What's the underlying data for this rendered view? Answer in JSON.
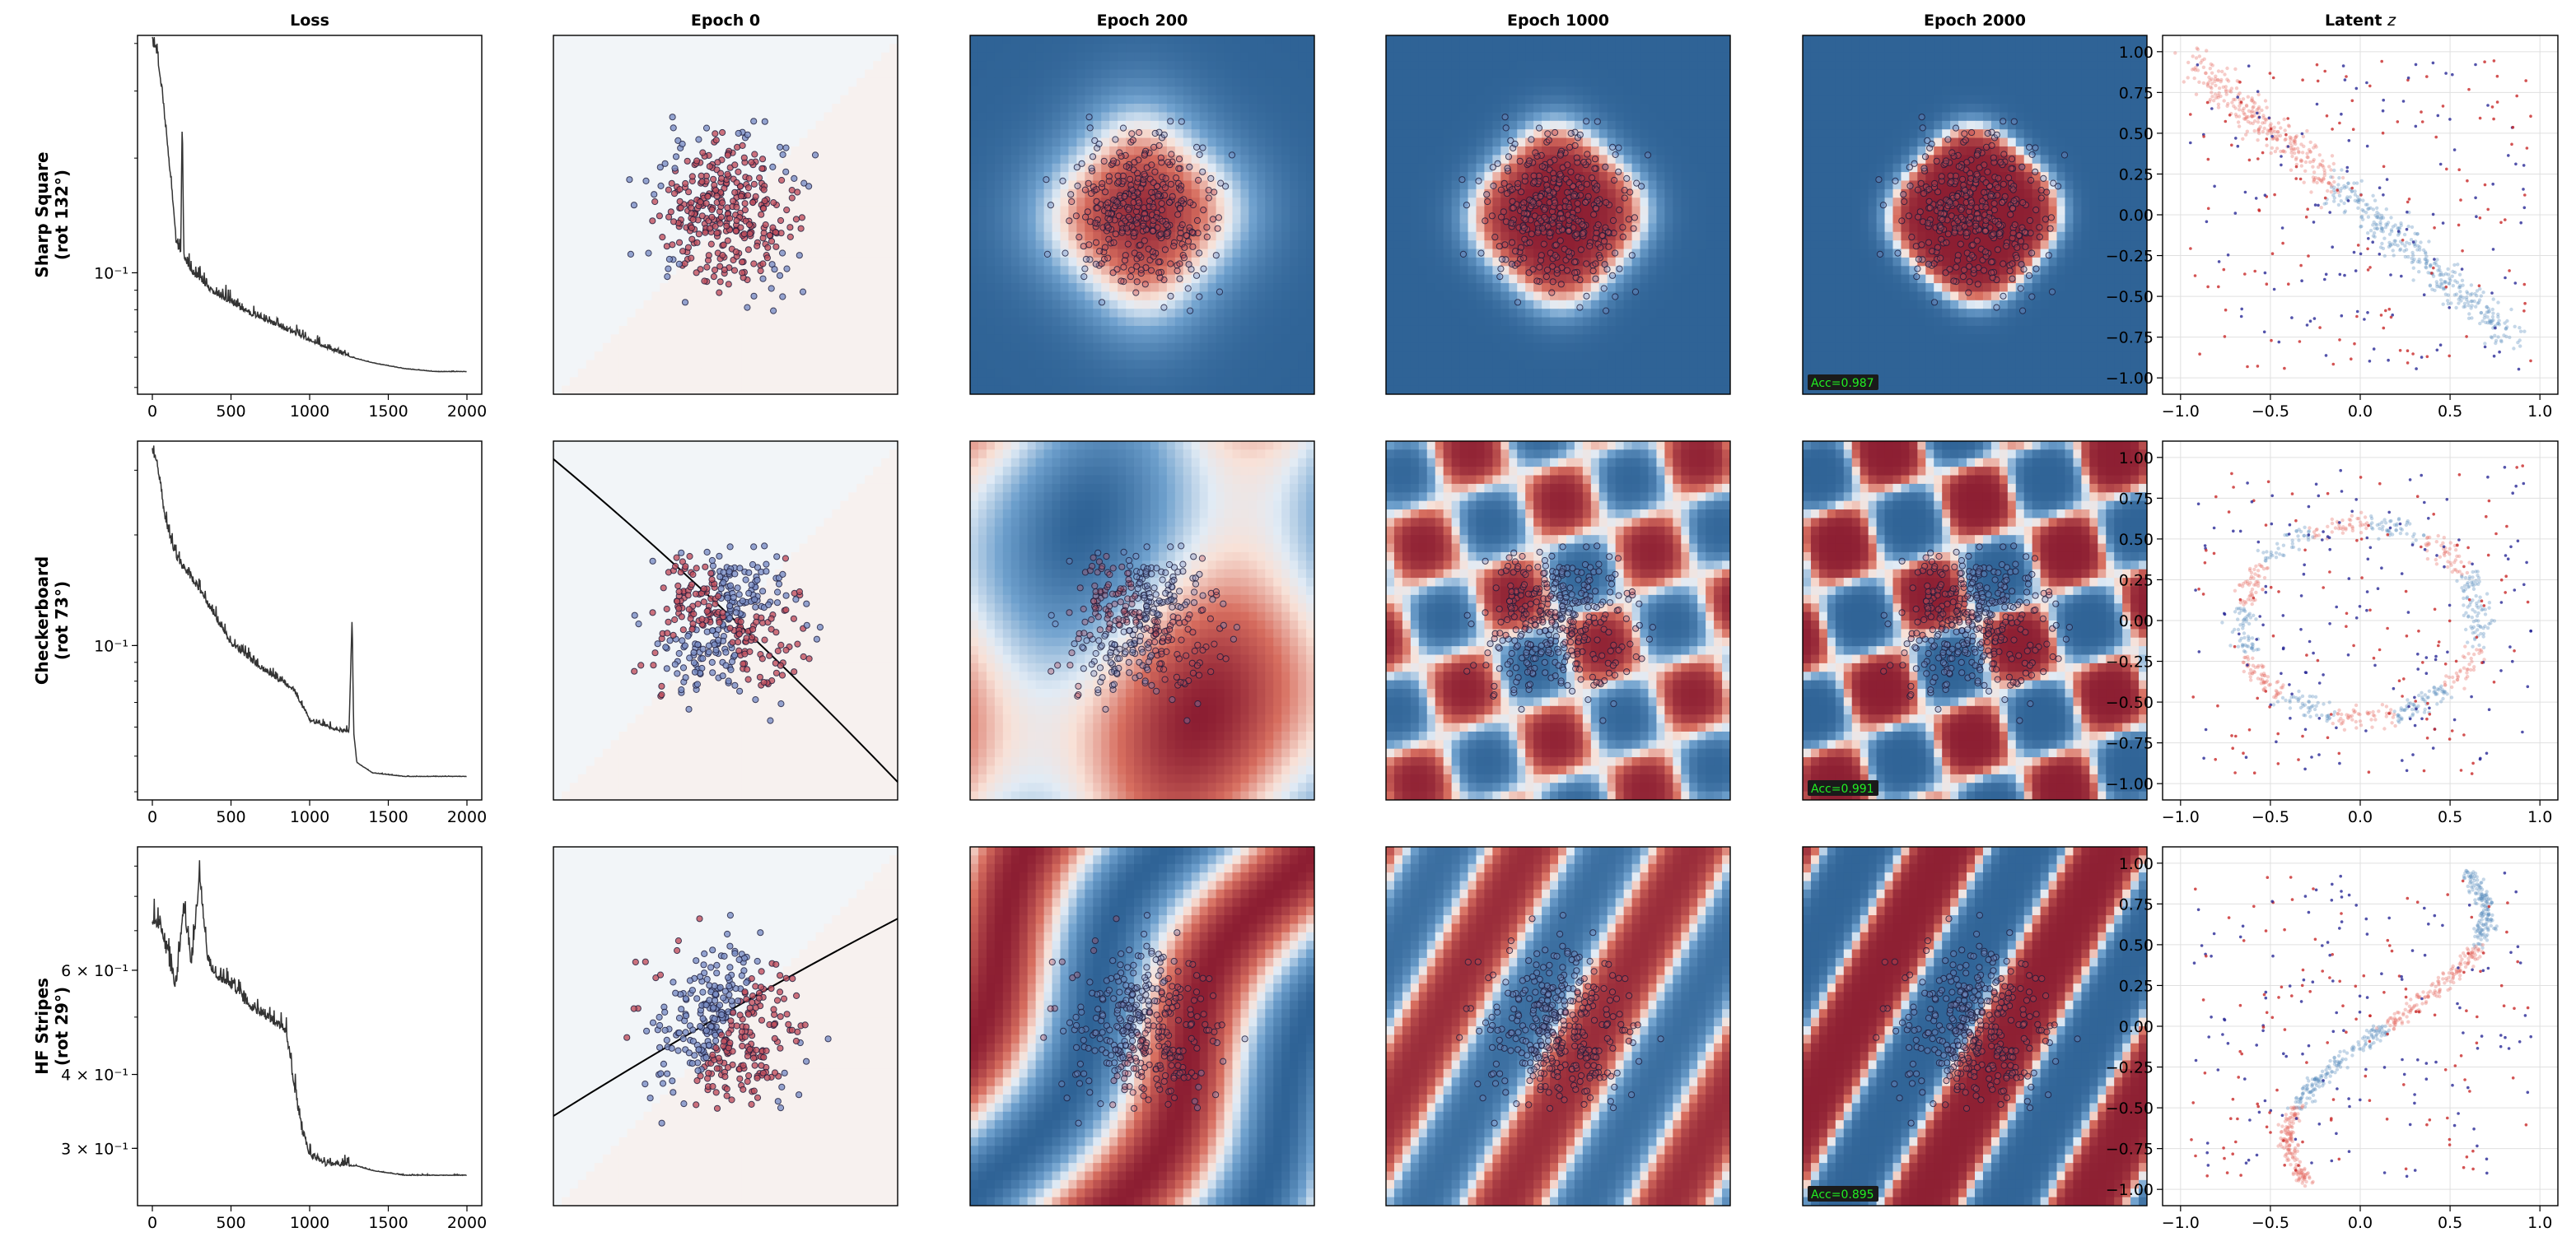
{
  "column_titles": [
    "Loss",
    "Epoch 0",
    "Epoch 200",
    "Epoch 1000",
    "Epoch 2000",
    "Latent z"
  ],
  "rows": [
    {
      "label_line1": "Sharp Square",
      "label_line2": "(rot 132°)",
      "accuracy": "Acc=0.987"
    },
    {
      "label_line1": "Checkerboard",
      "label_line2": "(rot 73°)",
      "accuracy": "Acc=0.991"
    },
    {
      "label_line1": "HF Stripes",
      "label_line2": "(rot 29°)",
      "accuracy": "Acc=0.895"
    }
  ],
  "colors": {
    "loss_line": "#333333",
    "class_red": "#a0475e",
    "class_blue": "#4f7499",
    "boundary": "#000000",
    "acc_badge_bg": "#1a1a1a",
    "acc_badge_text": "#22ee22"
  },
  "chart_data": [
    {
      "type": "line",
      "panel": "Loss",
      "title": "Loss",
      "yscale": "log",
      "xlim": [
        0,
        2000
      ],
      "ylim": [
        0.048,
        0.42
      ],
      "x_ticks": [
        0,
        500,
        1000,
        1500,
        2000
      ],
      "y_ticks": [
        {
          "value": 0.1,
          "label": "10⁻¹"
        }
      ],
      "series": [
        {
          "x": [
            0,
            30,
            60,
            120,
            150,
            180,
            190,
            200,
            240,
            300,
            400,
            600,
            800,
            1000,
            1200,
            1400,
            1600,
            1800,
            2000
          ],
          "y": [
            0.4,
            0.37,
            0.3,
            0.17,
            0.12,
            0.11,
            0.25,
            0.11,
            0.1,
            0.095,
            0.087,
            0.078,
            0.072,
            0.066,
            0.061,
            0.058,
            0.056,
            0.055,
            0.055
          ]
        }
      ]
    },
    {
      "type": "line",
      "panel": "Loss",
      "yscale": "log",
      "xlim": [
        0,
        2000
      ],
      "ylim": [
        0.038,
        0.36
      ],
      "x_ticks": [
        0,
        500,
        1000,
        1500,
        2000
      ],
      "y_ticks": [
        {
          "value": 0.1,
          "label": "10⁻¹"
        }
      ],
      "series": [
        {
          "x": [
            0,
            30,
            80,
            150,
            300,
            500,
            700,
            900,
            1000,
            1100,
            1200,
            1250,
            1270,
            1280,
            1300,
            1400,
            1600,
            1800,
            2000
          ],
          "y": [
            0.33,
            0.31,
            0.22,
            0.17,
            0.14,
            0.1,
            0.085,
            0.075,
            0.062,
            0.06,
            0.058,
            0.058,
            0.12,
            0.058,
            0.048,
            0.045,
            0.044,
            0.044,
            0.044
          ]
        }
      ]
    },
    {
      "type": "line",
      "panel": "Loss",
      "yscale": "log",
      "xlim": [
        0,
        2000
      ],
      "ylim": [
        0.24,
        0.97
      ],
      "x_ticks": [
        0,
        500,
        1000,
        1500,
        2000
      ],
      "y_ticks": [
        {
          "value": 0.6,
          "label": "6 × 10⁻¹"
        },
        {
          "value": 0.4,
          "label": "4 × 10⁻¹"
        },
        {
          "value": 0.3,
          "label": "3 × 10⁻¹"
        }
      ],
      "series": [
        {
          "x": [
            0,
            50,
            100,
            150,
            200,
            250,
            300,
            350,
            400,
            500,
            600,
            700,
            800,
            850,
            900,
            950,
            1000,
            1100,
            1200,
            1300,
            1400,
            1600,
            1800,
            2000
          ],
          "y": [
            0.71,
            0.7,
            0.62,
            0.55,
            0.76,
            0.6,
            0.85,
            0.62,
            0.58,
            0.56,
            0.52,
            0.5,
            0.48,
            0.47,
            0.38,
            0.32,
            0.29,
            0.28,
            0.28,
            0.28,
            0.275,
            0.27,
            0.27,
            0.27
          ]
        }
      ]
    },
    {
      "type": "scatter",
      "panel": "Latent z",
      "title": "Latent z",
      "xlim": [
        -1.1,
        1.1
      ],
      "ylim": [
        -1.1,
        1.1
      ],
      "x_ticks": [
        -1.0,
        -0.5,
        0.0,
        0.5,
        1.0
      ],
      "y_ticks": [
        1.0,
        0.75,
        0.5,
        0.25,
        0.0,
        -0.25,
        -0.5,
        -0.75,
        -1.0
      ],
      "grid": true
    },
    {
      "type": "scatter",
      "panel": "Latent z",
      "xlim": [
        -1.1,
        1.1
      ],
      "ylim": [
        -1.1,
        1.1
      ],
      "x_ticks": [
        -1.0,
        -0.5,
        0.0,
        0.5,
        1.0
      ],
      "y_ticks": [
        1.0,
        0.75,
        0.5,
        0.25,
        0.0,
        -0.25,
        -0.5,
        -0.75,
        -1.0
      ],
      "grid": true
    },
    {
      "type": "scatter",
      "panel": "Latent z",
      "xlim": [
        -1.1,
        1.1
      ],
      "ylim": [
        -1.1,
        1.1
      ],
      "x_ticks": [
        -1.0,
        -0.5,
        0.0,
        0.5,
        1.0
      ],
      "y_ticks": [
        1.0,
        0.75,
        0.5,
        0.25,
        0.0,
        -0.25,
        -0.5,
        -0.75,
        -1.0
      ],
      "grid": true
    }
  ]
}
